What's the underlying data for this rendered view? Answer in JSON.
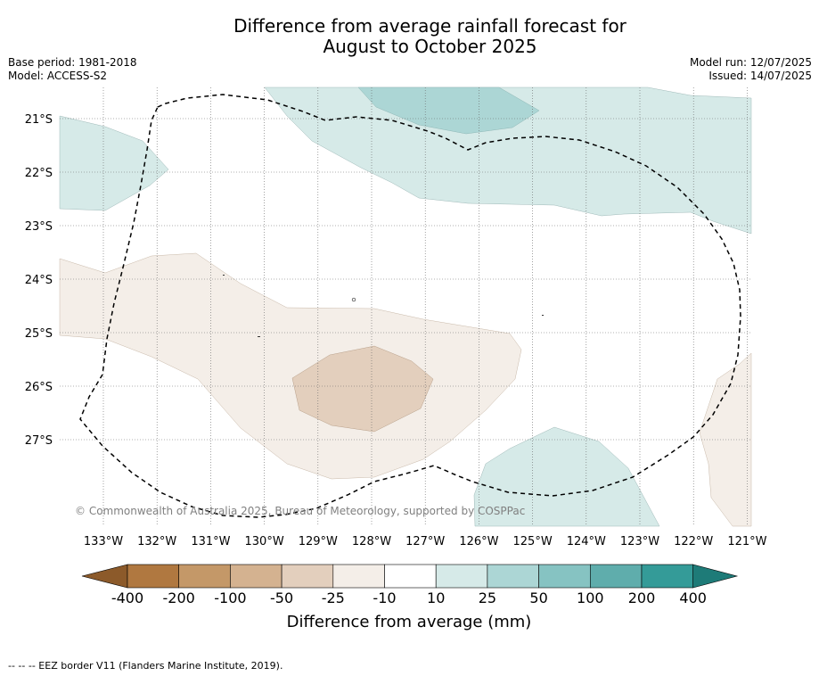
{
  "title_line1": "Difference from average rainfall forecast for",
  "title_line2": "August to October 2025",
  "base_period": "Base period: 1981-2018",
  "model": "Model: ACCESS-S2",
  "model_run": "Model run: 12/07/2025",
  "issued": "Issued: 14/07/2025",
  "copyright": "© Commonwealth of Australia 2025, Bureau of Meteorology, supported by COSPPac",
  "latitude_labels": [
    "21°S",
    "22°S",
    "23°S",
    "24°S",
    "25°S",
    "26°S",
    "27°S"
  ],
  "longitude_labels": [
    "133°W",
    "132°W",
    "131°W",
    "130°W",
    "129°W",
    "128°W",
    "127°W",
    "126°W",
    "125°W",
    "124°W",
    "123°W",
    "122°W",
    "121°W"
  ],
  "colorbar": {
    "title": "Difference from average (mm)",
    "tick_labels": [
      "-400",
      "-200",
      "-100",
      "-50",
      "-25",
      "-10",
      "10",
      "25",
      "50",
      "100",
      "200",
      "400"
    ],
    "colors": [
      "#8c5a2a",
      "#b07840",
      "#c49868",
      "#d4b290",
      "#e3cfbd",
      "#f4eee8",
      "#ffffff",
      "#d6eae8",
      "#acd6d5",
      "#86c3c2",
      "#5fadac",
      "#349b98",
      "#1e7b78"
    ]
  },
  "footer": "-- -- -- EEZ border V11 (Flanders Marine Institute, 2019).",
  "map_extent": {
    "lon_min": -133.8,
    "lon_max": -120.9,
    "lat_min": -28.6,
    "lat_max": -20.4
  }
}
